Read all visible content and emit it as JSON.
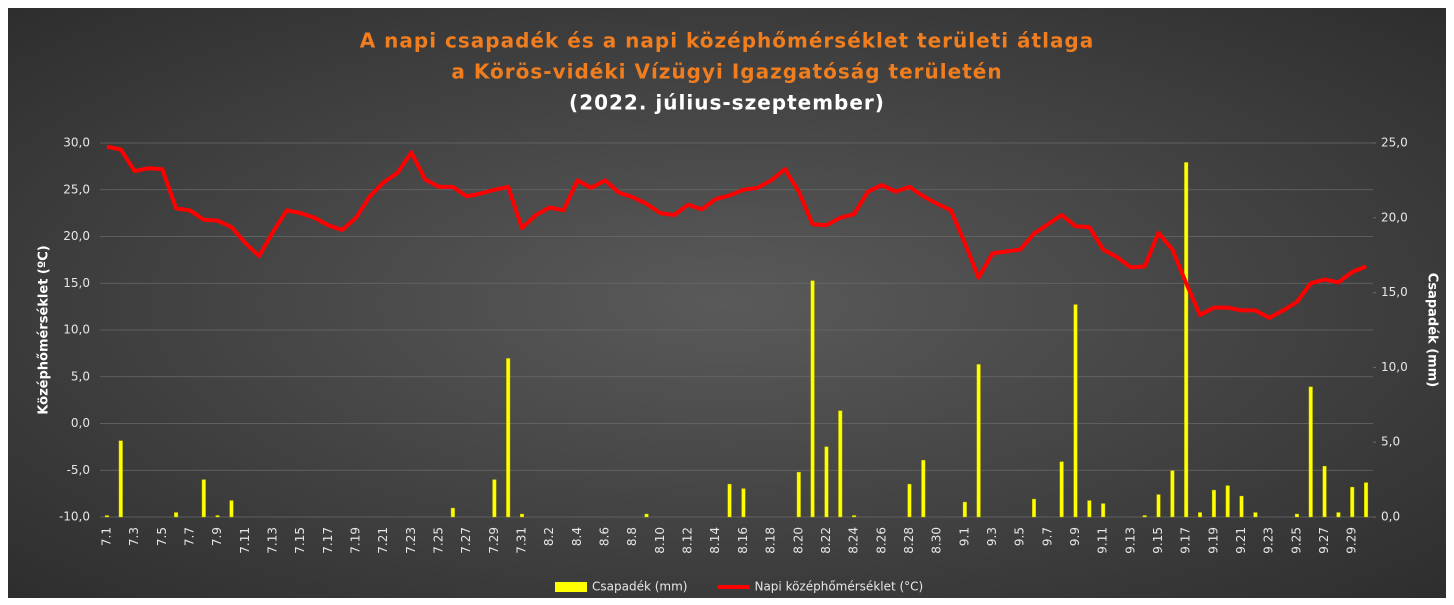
{
  "chart_data": {
    "type": "combo",
    "title": [
      "A napi csapadék és a napi középhőmérséklet területi átlaga",
      "a Körös-vidéki Vízügyi Igazgatóság területén"
    ],
    "subtitle": "(2022. július-szeptember)",
    "y_label": "Középhőmérséklet (ºC)",
    "y2_label": "Csapadék (mm)",
    "categories": [
      "7.1",
      null,
      "7.3",
      null,
      "7.5",
      null,
      "7.7",
      null,
      "7.9",
      null,
      "7.11",
      null,
      "7.13",
      null,
      "7.15",
      null,
      "7.17",
      null,
      "7.19",
      null,
      "7.21",
      null,
      "7.23",
      null,
      "7.25",
      null,
      "7.27",
      null,
      "7.29",
      null,
      "7.31",
      null,
      "8.2",
      null,
      "8.4",
      null,
      "8.6",
      null,
      "8.8",
      null,
      "8.10",
      null,
      "8.12",
      null,
      "8.14",
      null,
      "8.16",
      null,
      "8.18",
      null,
      "8.20",
      null,
      "8.22",
      null,
      "8.24",
      null,
      "8.26",
      null,
      "8.28",
      null,
      "8.30",
      null,
      "9.1",
      null,
      "9.3",
      null,
      "9.5",
      null,
      "9.7",
      null,
      "9.9",
      null,
      "9.11",
      null,
      "9.13",
      null,
      "9.15",
      null,
      "9.17",
      null,
      "9.19",
      null,
      "9.21",
      null,
      "9.23",
      null,
      "9.25",
      null,
      "9.27",
      null,
      "9.29",
      null
    ],
    "series": [
      {
        "name": "Csapadék (mm)",
        "type": "bar",
        "axis": "y2",
        "color": "#ffff00",
        "values": [
          0.1,
          5.1,
          0,
          0,
          0,
          0.3,
          0,
          2.5,
          0.1,
          1.1,
          0,
          0,
          0,
          0,
          0,
          0,
          0,
          0,
          0,
          0,
          0,
          0,
          0,
          0,
          0,
          0.6,
          0,
          0,
          2.5,
          10.6,
          0.2,
          0,
          0,
          0,
          0,
          0,
          0,
          0,
          0,
          0.2,
          0,
          0,
          0,
          0,
          0,
          2.2,
          1.9,
          0,
          0,
          0,
          3.0,
          15.8,
          4.7,
          7.1,
          0.1,
          0,
          0,
          0,
          2.2,
          3.8,
          0,
          0,
          1.0,
          10.2,
          0,
          0,
          0,
          1.2,
          0,
          3.7,
          14.2,
          1.1,
          0.9,
          0,
          0,
          0.1,
          1.5,
          3.1,
          23.7,
          0.3,
          1.8,
          2.1,
          1.4,
          0.3,
          0,
          0,
          0.2,
          8.7,
          3.4,
          0.3,
          2.0,
          2.3
        ]
      },
      {
        "name": "Napi középhőmérséklet (°C)",
        "type": "line",
        "axis": "y",
        "color": "#ff0000",
        "values": [
          29.6,
          29.3,
          27.0,
          27.3,
          27.2,
          23.0,
          22.8,
          21.8,
          21.7,
          21.0,
          19.3,
          17.9,
          20.5,
          22.8,
          22.5,
          22.0,
          21.2,
          20.7,
          22.0,
          24.3,
          25.8,
          26.8,
          29.0,
          26.1,
          25.3,
          25.3,
          24.3,
          24.6,
          25.0,
          25.3,
          20.9,
          22.3,
          23.1,
          22.8,
          26.0,
          25.2,
          26.0,
          24.7,
          24.2,
          23.5,
          22.5,
          22.3,
          23.4,
          22.9,
          24.0,
          24.4,
          25.0,
          25.2,
          26.0,
          27.2,
          24.8,
          21.3,
          21.2,
          22.0,
          22.4,
          24.8,
          25.5,
          24.8,
          25.3,
          24.3,
          23.5,
          22.8,
          19.3,
          15.6,
          18.2,
          18.4,
          18.6,
          20.3,
          21.3,
          22.3,
          21.1,
          21.0,
          18.6,
          17.8,
          16.7,
          16.8,
          20.4,
          18.6,
          15.0,
          11.6,
          12.4,
          12.4,
          12.1,
          12.1,
          11.3,
          12.1,
          13.0,
          15.0,
          15.4,
          15.1,
          16.2,
          16.8
        ]
      }
    ],
    "ylim": [
      -10,
      30
    ],
    "yticks": [
      {
        "value": -10,
        "label": "-10,0"
      },
      {
        "value": -5,
        "label": "-5,0"
      },
      {
        "value": 0,
        "label": "0,0"
      },
      {
        "value": 5,
        "label": "5,0"
      },
      {
        "value": 10,
        "label": "10,0"
      },
      {
        "value": 15,
        "label": "15,0"
      },
      {
        "value": 20,
        "label": "20,0"
      },
      {
        "value": 25,
        "label": "25,0"
      },
      {
        "value": 30,
        "label": "30,0"
      }
    ],
    "y2lim": [
      0,
      25
    ],
    "y2ticks": [
      {
        "value": 0,
        "label": "0,0"
      },
      {
        "value": 5,
        "label": "5,0"
      },
      {
        "value": 10,
        "label": "10,0"
      },
      {
        "value": 15,
        "label": "15,0"
      },
      {
        "value": 20,
        "label": "20,0"
      },
      {
        "value": 25,
        "label": "25,0"
      }
    ],
    "grid": true,
    "legend": "bottom"
  }
}
